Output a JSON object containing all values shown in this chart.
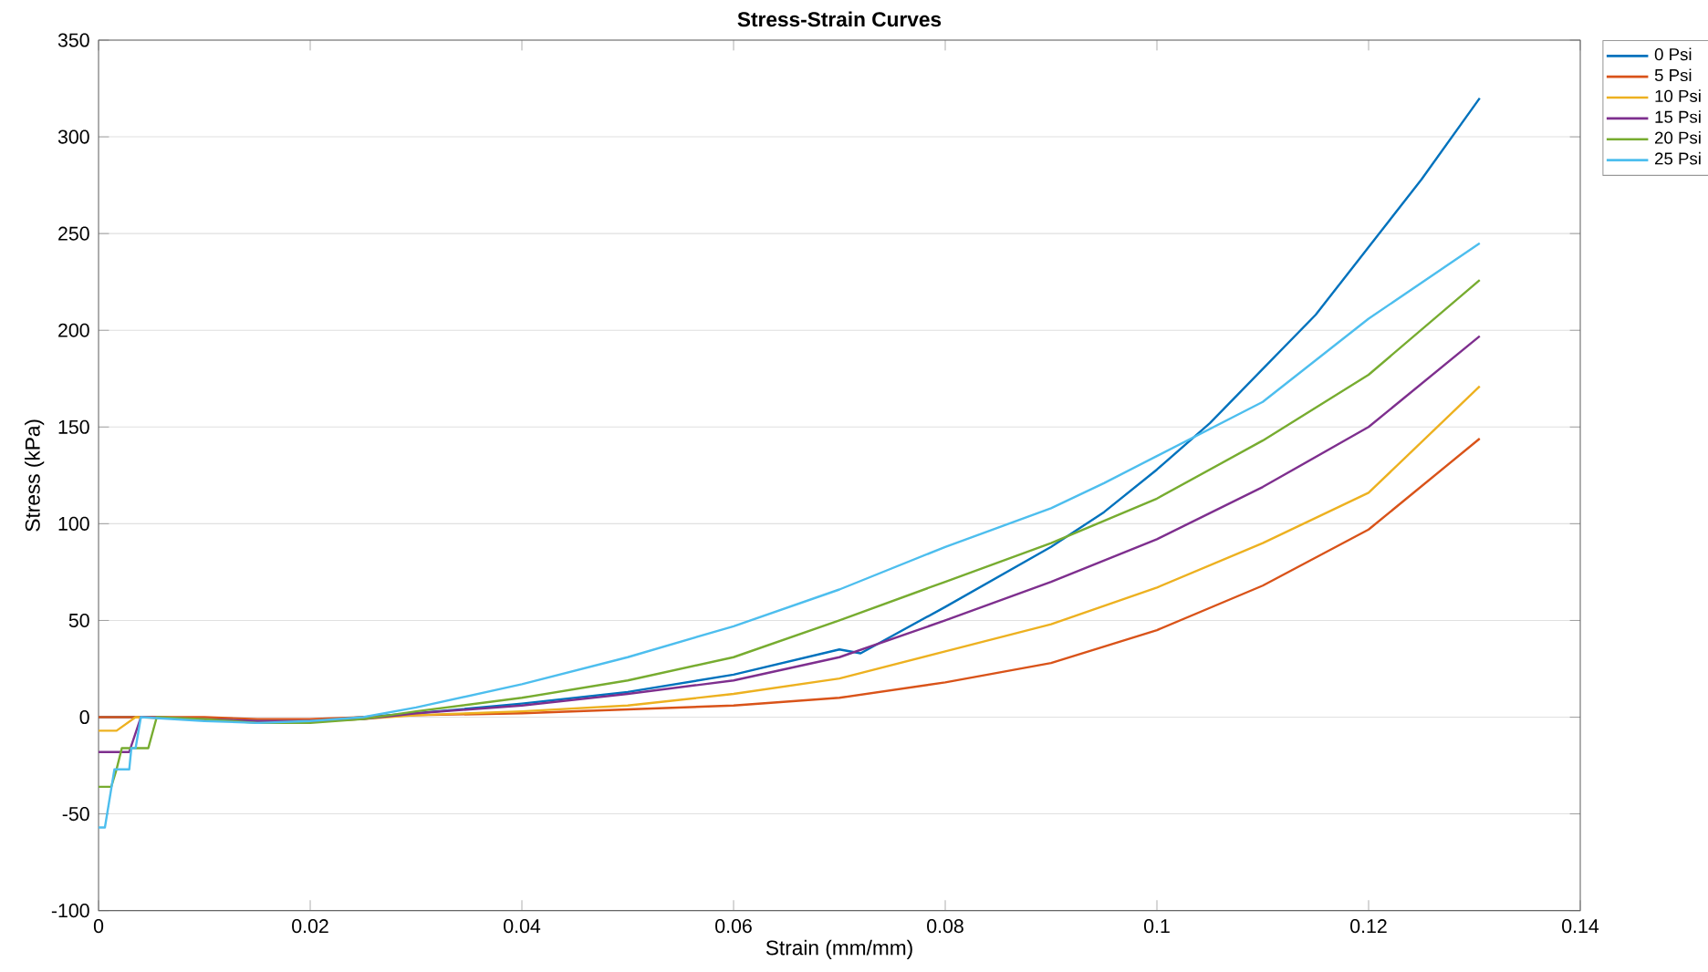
{
  "chart_data": {
    "type": "line",
    "title": "Stress-Strain Curves",
    "xlabel": "Strain (mm/mm)",
    "ylabel": "Stress (kPa)",
    "xlim": [
      0,
      0.14
    ],
    "ylim": [
      -100,
      350
    ],
    "xticks": [
      0,
      0.02,
      0.04,
      0.06,
      0.08,
      0.1,
      0.12,
      0.14
    ],
    "yticks": [
      -100,
      -50,
      0,
      50,
      100,
      150,
      200,
      250,
      300,
      350
    ],
    "grid": "y",
    "legend": "top right",
    "line_style": "solid",
    "marker": "none",
    "series": [
      {
        "name": "0 Psi",
        "color": "#0072bd",
        "x": [
          0,
          0.005,
          0.01,
          0.015,
          0.02,
          0.025,
          0.03,
          0.04,
          0.05,
          0.06,
          0.07,
          0.072,
          0.08,
          0.09,
          0.095,
          0.1,
          0.105,
          0.11,
          0.115,
          0.12,
          0.125,
          0.1305
        ],
        "values": [
          0,
          0,
          -1,
          -2,
          -2,
          0,
          2,
          7,
          13,
          22,
          35,
          33,
          57,
          88,
          106,
          128,
          152,
          180,
          208,
          243,
          278,
          320
        ]
      },
      {
        "name": "5 Psi",
        "color": "#d95319",
        "x": [
          0,
          0.005,
          0.01,
          0.015,
          0.02,
          0.025,
          0.03,
          0.04,
          0.05,
          0.06,
          0.07,
          0.08,
          0.09,
          0.1,
          0.11,
          0.12,
          0.1305
        ],
        "values": [
          0,
          0,
          0,
          -1,
          -1,
          0,
          1,
          2,
          4,
          6,
          10,
          18,
          28,
          45,
          68,
          97,
          144
        ]
      },
      {
        "name": "10 Psi",
        "color": "#edb120",
        "x": [
          0,
          0.0017,
          0.0035,
          0.01,
          0.015,
          0.02,
          0.025,
          0.03,
          0.04,
          0.05,
          0.06,
          0.07,
          0.08,
          0.09,
          0.1,
          0.11,
          0.12,
          0.1305
        ],
        "values": [
          -7,
          -7,
          0,
          -1,
          -2,
          -2,
          -1,
          1,
          3,
          6,
          12,
          20,
          34,
          48,
          67,
          90,
          116,
          171
        ]
      },
      {
        "name": "15 Psi",
        "color": "#7e2f8e",
        "x": [
          0,
          0.0029,
          0.004,
          0.01,
          0.015,
          0.02,
          0.025,
          0.03,
          0.04,
          0.05,
          0.06,
          0.07,
          0.08,
          0.09,
          0.1,
          0.11,
          0.12,
          0.1305
        ],
        "values": [
          -18,
          -18,
          0,
          -1,
          -2,
          -2,
          -1,
          2,
          6,
          12,
          19,
          31,
          50,
          70,
          92,
          119,
          150,
          197
        ]
      },
      {
        "name": "20 Psi",
        "color": "#77ac30",
        "x": [
          0,
          0.0012,
          0.0017,
          0.0022,
          0.0047,
          0.0055,
          0.01,
          0.015,
          0.02,
          0.025,
          0.03,
          0.04,
          0.05,
          0.06,
          0.07,
          0.08,
          0.09,
          0.1,
          0.11,
          0.12,
          0.1305
        ],
        "values": [
          -36,
          -36,
          -27,
          -16,
          -16,
          0,
          -1,
          -3,
          -3,
          -1,
          3,
          10,
          19,
          31,
          50,
          70,
          90,
          113,
          143,
          177,
          226
        ]
      },
      {
        "name": "25 Psi",
        "color": "#4dbeee",
        "x": [
          0,
          0.0006,
          0.0015,
          0.0029,
          0.0031,
          0.0035,
          0.004,
          0.01,
          0.015,
          0.02,
          0.025,
          0.03,
          0.04,
          0.05,
          0.06,
          0.07,
          0.08,
          0.09,
          0.095,
          0.1,
          0.11,
          0.12,
          0.1305
        ],
        "values": [
          -57,
          -57,
          -27,
          -27,
          -16,
          -16,
          0,
          -2,
          -3,
          -2,
          0,
          5,
          17,
          31,
          47,
          66,
          88,
          108,
          121,
          135,
          163,
          206,
          245
        ]
      }
    ]
  }
}
